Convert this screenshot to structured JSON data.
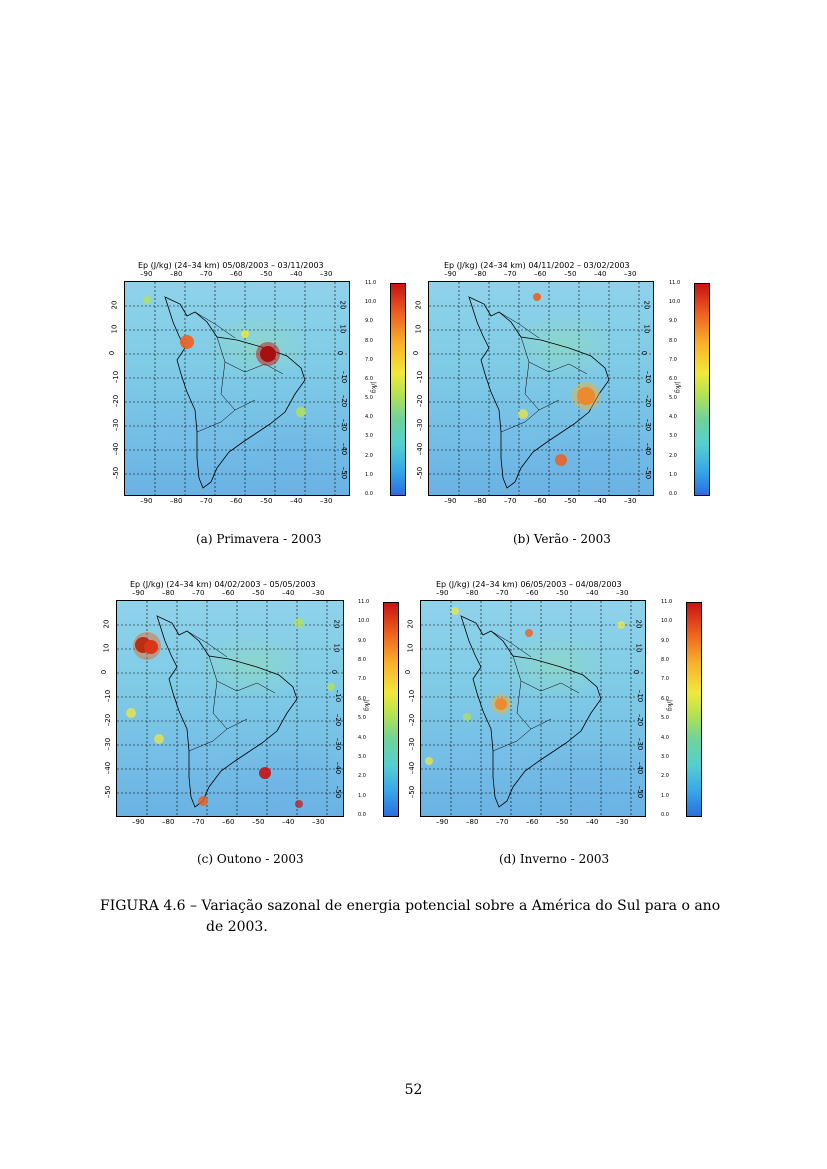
{
  "panels": [
    {
      "id": "a",
      "title": "Ep (J/kg) (24–34 km)    05/08/2003 – 03/11/2003",
      "subcaption": "(a) Primavera - 2003"
    },
    {
      "id": "b",
      "title": "Ep (J/kg) (24–34 km)    04/11/2002 – 03/02/2003",
      "subcaption": "(b) Verão - 2003"
    },
    {
      "id": "c",
      "title": "Ep (J/kg) (24–34 km)    04/02/2003 – 05/05/2003",
      "subcaption": "(c) Outono - 2003"
    },
    {
      "id": "d",
      "title": "Ep (J/kg) (24–34 km)    06/05/2003 – 04/08/2003",
      "subcaption": "(d) Inverno - 2003"
    }
  ],
  "lon_ticks": [
    "–90",
    "–80",
    "–70",
    "–60",
    "–50",
    "–40",
    "–30"
  ],
  "lat_ticks": [
    "20",
    "10",
    "0",
    "–10",
    "–20",
    "–30",
    "–40",
    "–50"
  ],
  "colorbar_ticks": [
    "11.0",
    "10.0",
    "9.0",
    "8.0",
    "7.0",
    "6.0",
    "5.0",
    "4.0",
    "3.0",
    "2.0",
    "1.0",
    "0.0"
  ],
  "colorbar_unit": "J/kg",
  "colors": {
    "low": "#2a6fe0",
    "mid": "#f2e83a",
    "high": "#c61313"
  },
  "caption": {
    "line1": "FIGURA 4.6 – Variação sazonal de energia potencial sobre a América do Sul para o ano",
    "line2": "de 2003."
  },
  "page_number": "52"
}
